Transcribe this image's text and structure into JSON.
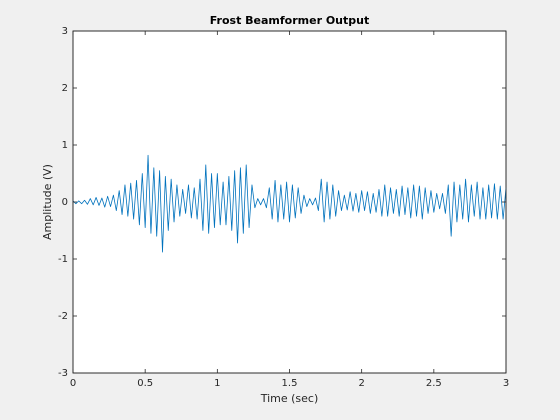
{
  "chart_data": {
    "type": "line",
    "title": "Frost Beamformer Output",
    "x_label": "Time (sec)",
    "y_label": "Amplitude (V)",
    "color": "#0072bd",
    "xlim": [
      0,
      3
    ],
    "ylim": [
      -3,
      3
    ],
    "xticks": [
      0,
      0.5,
      1,
      1.5,
      2,
      2.5,
      3
    ],
    "yticks": [
      -3,
      -2,
      -1,
      0,
      1,
      2,
      3
    ],
    "grid": false,
    "x": [
      0,
      0.02,
      0.04,
      0.06,
      0.08,
      0.1,
      0.12,
      0.14,
      0.16,
      0.18,
      0.2,
      0.22,
      0.24,
      0.26,
      0.28,
      0.3,
      0.32,
      0.34,
      0.36,
      0.38,
      0.4,
      0.42,
      0.44,
      0.46,
      0.48,
      0.5,
      0.52,
      0.54,
      0.56,
      0.58,
      0.6,
      0.62,
      0.64,
      0.66,
      0.68,
      0.7,
      0.72,
      0.74,
      0.76,
      0.78,
      0.8,
      0.82,
      0.84,
      0.86,
      0.88,
      0.9,
      0.92,
      0.94,
      0.96,
      0.98,
      1,
      1.02,
      1.04,
      1.06,
      1.08,
      1.1,
      1.12,
      1.14,
      1.16,
      1.18,
      1.2,
      1.22,
      1.24,
      1.26,
      1.28,
      1.3,
      1.32,
      1.34,
      1.36,
      1.38,
      1.4,
      1.42,
      1.44,
      1.46,
      1.48,
      1.5,
      1.52,
      1.54,
      1.56,
      1.58,
      1.6,
      1.62,
      1.64,
      1.66,
      1.68,
      1.7,
      1.72,
      1.74,
      1.76,
      1.78,
      1.8,
      1.82,
      1.84,
      1.86,
      1.88,
      1.9,
      1.92,
      1.94,
      1.96,
      1.98,
      2,
      2.02,
      2.04,
      2.06,
      2.08,
      2.1,
      2.12,
      2.14,
      2.16,
      2.18,
      2.2,
      2.22,
      2.24,
      2.26,
      2.28,
      2.3,
      2.32,
      2.34,
      2.36,
      2.38,
      2.4,
      2.42,
      2.44,
      2.46,
      2.48,
      2.5,
      2.52,
      2.54,
      2.56,
      2.58,
      2.6,
      2.62,
      2.64,
      2.66,
      2.68,
      2.7,
      2.72,
      2.74,
      2.76,
      2.78,
      2.8,
      2.82,
      2.84,
      2.86,
      2.88,
      2.9,
      2.92,
      2.94,
      2.96,
      2.98,
      3
    ],
    "values": [
      0.02,
      -0.03,
      0.02,
      -0.03,
      0.03,
      -0.04,
      0.06,
      -0.05,
      0.08,
      -0.06,
      0.07,
      -0.09,
      0.1,
      -0.08,
      0.12,
      -0.15,
      0.2,
      -0.22,
      0.3,
      -0.25,
      0.33,
      -0.3,
      0.38,
      -0.4,
      0.5,
      -0.45,
      0.82,
      -0.55,
      0.6,
      -0.6,
      0.55,
      -0.88,
      0.45,
      -0.5,
      0.4,
      -0.35,
      0.3,
      -0.25,
      0.22,
      -0.2,
      0.3,
      -0.28,
      0.25,
      -0.3,
      0.4,
      -0.5,
      0.65,
      -0.55,
      0.5,
      -0.45,
      0.5,
      -0.4,
      0.35,
      -0.4,
      0.45,
      -0.5,
      0.55,
      -0.72,
      0.6,
      -0.55,
      0.65,
      -0.45,
      0.3,
      -0.1,
      0.06,
      -0.05,
      0.06,
      -0.1,
      0.25,
      -0.3,
      0.38,
      -0.35,
      0.3,
      -0.3,
      0.35,
      -0.35,
      0.3,
      -0.28,
      0.25,
      -0.2,
      0.12,
      -0.08,
      0.06,
      -0.05,
      0.07,
      -0.15,
      0.4,
      -0.35,
      0.35,
      -0.3,
      0.3,
      -0.25,
      0.2,
      -0.15,
      0.12,
      -0.14,
      0.18,
      -0.16,
      0.15,
      -0.18,
      0.2,
      -0.15,
      0.18,
      -0.2,
      0.15,
      -0.18,
      0.22,
      -0.25,
      0.3,
      -0.25,
      0.25,
      -0.2,
      0.22,
      -0.25,
      0.28,
      -0.22,
      0.25,
      -0.28,
      0.3,
      -0.25,
      0.28,
      -0.3,
      0.25,
      -0.2,
      0.2,
      -0.18,
      0.15,
      -0.12,
      0.15,
      -0.2,
      0.3,
      -0.6,
      0.35,
      -0.35,
      0.3,
      -0.3,
      0.4,
      -0.35,
      0.3,
      -0.25,
      0.35,
      -0.3,
      0.25,
      -0.3,
      0.3,
      -0.28,
      0.32,
      -0.3,
      0.28,
      -0.3,
      0.25
    ]
  }
}
